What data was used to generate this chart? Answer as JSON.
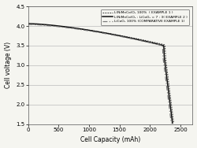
{
  "title": "",
  "xlabel": "Cell Capacity (mAh)",
  "ylabel": "Cell voltage (V)",
  "xlim": [
    0,
    2700
  ],
  "ylim": [
    1.5,
    4.5
  ],
  "yticks": [
    1.5,
    2.0,
    2.5,
    3.0,
    3.5,
    4.0,
    4.5
  ],
  "xticks": [
    0,
    500,
    1000,
    1500,
    2000,
    2500
  ],
  "legend": [
    "L(NiMnCo)O₂ 100%  ( EXAMPLE 1 )",
    "L(NiMnCo)O₂ : LiCoO₂ = 7 : 3( EXAMPLE 2 )",
    "LiCoO₂ 100% (COMPARATIVE EXAMPLE 1)"
  ],
  "line_styles": [
    "dotted",
    "solid",
    "dashed"
  ],
  "line_colors": [
    "#444444",
    "#111111",
    "#777777"
  ],
  "background_color": "#f5f5f0",
  "grid_color": "#bbbbbb",
  "curves": [
    {
      "plateau_start": 4.05,
      "plateau_end": 3.52,
      "knee_x": 2250,
      "knee_v": 3.28,
      "drop_x": 2390,
      "drop_v": 1.52,
      "steepness": 0.06
    },
    {
      "plateau_start": 4.06,
      "plateau_end": 3.5,
      "knee_x": 2230,
      "knee_v": 3.26,
      "drop_x": 2370,
      "drop_v": 1.52,
      "steepness": 0.065
    },
    {
      "plateau_start": 4.04,
      "plateau_end": 3.5,
      "knee_x": 2210,
      "knee_v": 3.25,
      "drop_x": 2350,
      "drop_v": 1.52,
      "steepness": 0.055
    }
  ]
}
